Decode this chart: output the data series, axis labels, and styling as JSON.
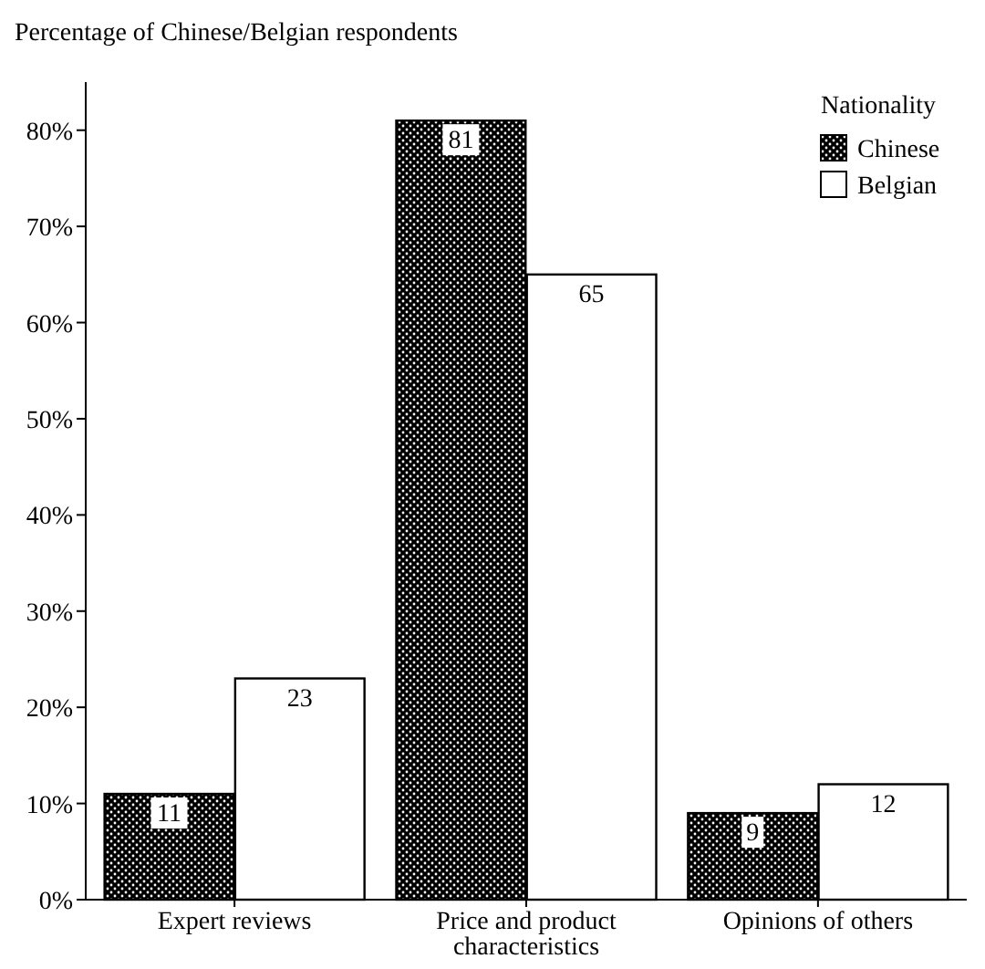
{
  "chart_data": {
    "type": "bar",
    "ylabel": "Percentage of Chinese/Belgian respondents",
    "legend_title": "Nationality",
    "legend": "top right",
    "categories": [
      "Expert reviews",
      "Price and product characteristics",
      "Opinions of others"
    ],
    "series": [
      {
        "name": "Chinese",
        "color": "#000000",
        "values": [
          11,
          81,
          9
        ]
      },
      {
        "name": "Belgian",
        "color": "#ffffff",
        "values": [
          23,
          65,
          12
        ]
      }
    ],
    "data_labels": true,
    "ylim": [
      0,
      85
    ],
    "yticks": [
      {
        "value": 0,
        "label": "0%"
      },
      {
        "value": 10,
        "label": "10%"
      },
      {
        "value": 20,
        "label": "20%"
      },
      {
        "value": 30,
        "label": "30%"
      },
      {
        "value": 40,
        "label": "40%"
      },
      {
        "value": 50,
        "label": "50%"
      },
      {
        "value": 60,
        "label": "60%"
      },
      {
        "value": 70,
        "label": "70%"
      },
      {
        "value": 80,
        "label": "80%"
      }
    ],
    "grid": false
  }
}
